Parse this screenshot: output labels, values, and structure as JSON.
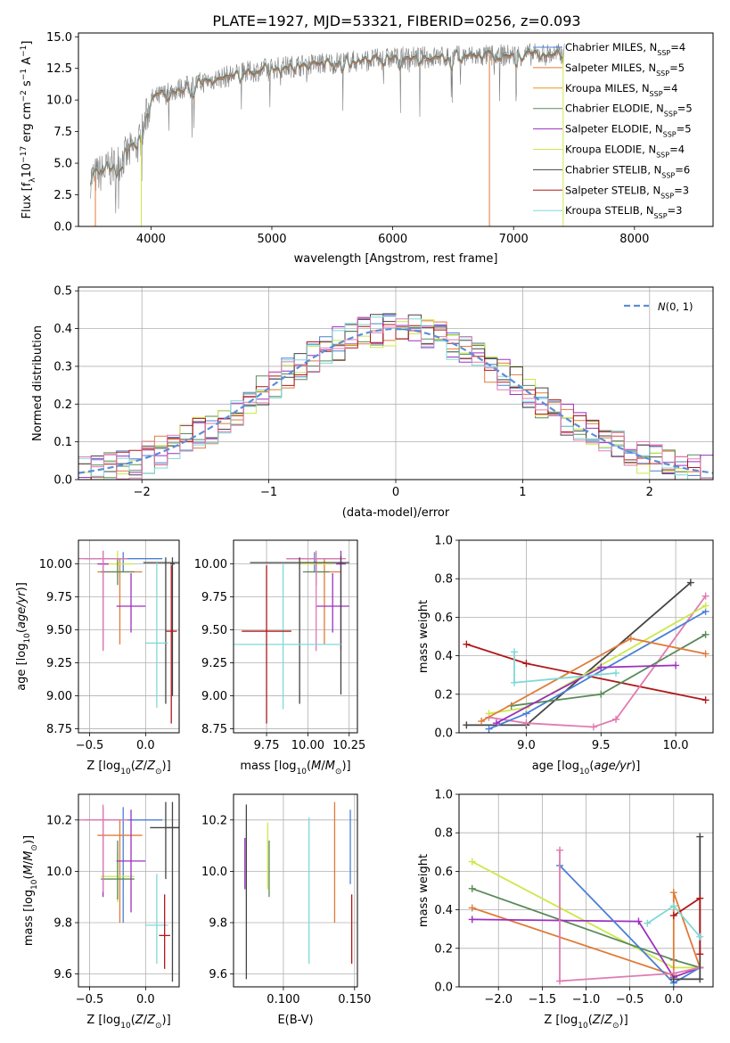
{
  "figure": {
    "title": "PLATE=1927, MJD=53321, FIBERID=0256, z=0.093"
  },
  "colors": {
    "grid": "#b0b0b0",
    "series": [
      "#4c72b0",
      "#dd8452",
      "#8172b2",
      "#937860",
      "#da8bc3",
      "#8c8c8c",
      "#ccb974",
      "#64b5cd"
    ]
  },
  "chart_data": [
    {
      "id": "spectrum",
      "type": "line",
      "xlabel": "wavelength [Angstrom, rest frame]",
      "ylabel": "Flux [f_λ10^-17 erg cm^-2 s^-1 A^-1]",
      "xlim": [
        3400,
        8650
      ],
      "ylim": [
        0,
        15.3
      ],
      "xticks": [
        4000,
        5000,
        6000,
        7000,
        8000
      ],
      "yticks": [
        0.0,
        2.5,
        5.0,
        7.5,
        10.0,
        12.5,
        15.0
      ],
      "ytick_labels": [
        "0.0",
        "2.5",
        "5.0",
        "7.5",
        "10.0",
        "12.5",
        "15.0"
      ],
      "grid": false,
      "legend_position": "top-right",
      "observed_color": "#7f7f7f",
      "continuum": {
        "x": [
          3500,
          3700,
          3900,
          4000,
          4200,
          4500,
          4800,
          5000,
          5300,
          5600,
          6000,
          6400,
          6800,
          7200,
          7400
        ],
        "y": [
          3.8,
          4.8,
          6.5,
          10.0,
          10.8,
          11.6,
          12.2,
          12.5,
          12.8,
          13.0,
          13.3,
          13.4,
          13.5,
          13.6,
          13.6
        ]
      },
      "series": [
        {
          "name": "Chabrier MILES",
          "nssp": "4",
          "color": "#4a7fd4"
        },
        {
          "name": "Salpeter MILES",
          "nssp": "5",
          "color": "#e07b39"
        },
        {
          "name": "Kroupa MILES",
          "nssp": "4",
          "color": "#e69520"
        },
        {
          "name": "Chabrier ELODIE",
          "nssp": "5",
          "color": "#5a8a5a"
        },
        {
          "name": "Salpeter ELODIE",
          "nssp": "5",
          "color": "#9b30c0"
        },
        {
          "name": "Kroupa ELODIE",
          "nssp": "4",
          "color": "#cce84a"
        },
        {
          "name": "Chabrier STELIB",
          "nssp": "6",
          "color": "#444444"
        },
        {
          "name": "Salpeter STELIB",
          "nssp": "3",
          "color": "#b01818"
        },
        {
          "name": "Kroupa STELIB",
          "nssp": "3",
          "color": "#7fd8d8"
        }
      ]
    },
    {
      "id": "residuals",
      "type": "line",
      "xlabel": "(data-model)/error",
      "ylabel": "Normed distribution",
      "xlim": [
        -2.5,
        2.5
      ],
      "ylim": [
        0,
        0.51
      ],
      "xticks": [
        -2,
        -1,
        0,
        1,
        2
      ],
      "xtick_labels": [
        "−2",
        "−1",
        "0",
        "1",
        "2"
      ],
      "yticks": [
        0.0,
        0.1,
        0.2,
        0.3,
        0.4,
        0.5
      ],
      "ytick_labels": [
        "0.0",
        "0.1",
        "0.2",
        "0.3",
        "0.4",
        "0.5"
      ],
      "grid": true,
      "legend_position": "top-right",
      "gaussian": {
        "name": "N(0, 1)",
        "mean": 0,
        "sigma": 1,
        "color": "#5b8fd6"
      },
      "hist_colors": [
        "#4a7fd4",
        "#e07b39",
        "#5a8a5a",
        "#9b30c0",
        "#cce84a",
        "#444444",
        "#b01818",
        "#7fd8d8",
        "#e07bb0"
      ]
    },
    {
      "id": "age_vs_Z",
      "type": "errorbar",
      "xlabel": "Z [log10(Z/Z⊙)]",
      "ylabel": "age [log10(age/yr)]",
      "xlim": [
        -0.6,
        0.3
      ],
      "ylim": [
        8.72,
        10.18
      ],
      "xticks": [
        -0.5,
        0.0
      ],
      "xtick_labels": [
        "−0.5",
        "0.0"
      ],
      "yticks": [
        8.75,
        9.0,
        9.25,
        9.5,
        9.75,
        10.0
      ],
      "ytick_labels": [
        "8.75",
        "9.00",
        "9.25",
        "9.50",
        "9.75",
        "10.00"
      ],
      "grid": true,
      "points": [
        {
          "x": -0.2,
          "y": 10.04,
          "xerr": 0.35,
          "yerr": [
            0.1,
            0.05
          ],
          "color": "#4a7fd4"
        },
        {
          "x": -0.23,
          "y": 9.94,
          "xerr": 0.2,
          "yerr": [
            0.55,
            0.1
          ],
          "color": "#e07b39"
        },
        {
          "x": -0.25,
          "y": 10.0,
          "xerr": 0.15,
          "yerr": [
            0.1,
            0.1
          ],
          "color": "#cce84a"
        },
        {
          "x": -0.25,
          "y": 9.94,
          "xerr": 0.15,
          "yerr": [
            0.1,
            0.1
          ],
          "color": "#5a8a5a"
        },
        {
          "x": -0.13,
          "y": 9.68,
          "xerr": 0.13,
          "yerr": [
            0.2,
            0.25
          ],
          "color": "#9b30c0"
        },
        {
          "x": -0.38,
          "y": 10.0,
          "xerr": 0.05,
          "yerr": [
            0.65,
            0.1
          ],
          "color": "#9b30c0"
        },
        {
          "x": -0.38,
          "y": 10.04,
          "xerr": 0.22,
          "yerr": [
            0.7,
            0.06
          ],
          "color": "#e07bb0"
        },
        {
          "x": 0.24,
          "y": 10.0,
          "xerr": 0.02,
          "yerr": [
            1.0,
            0.05
          ],
          "color": "#444444"
        },
        {
          "x": 0.18,
          "y": 10.01,
          "xerr": 0.2,
          "yerr": [
            1.07,
            0.04
          ],
          "color": "#444444"
        },
        {
          "x": 0.1,
          "y": 9.4,
          "xerr": 0.1,
          "yerr": [
            0.49,
            0.61
          ],
          "color": "#7fd8d8"
        },
        {
          "x": 0.23,
          "y": 9.49,
          "xerr": 0.05,
          "yerr": [
            0.7,
            0.5
          ],
          "color": "#b01818"
        }
      ]
    },
    {
      "id": "age_vs_mass",
      "type": "errorbar",
      "xlabel": "mass [log10(M/M⊙)]",
      "xlim": [
        9.55,
        10.3
      ],
      "ylim": [
        8.72,
        10.18
      ],
      "xticks": [
        9.75,
        10.0,
        10.25
      ],
      "xtick_labels": [
        "9.75",
        "10.00",
        "10.25"
      ],
      "yticks": [
        8.75,
        9.0,
        9.25,
        9.5,
        9.75,
        10.0
      ],
      "ytick_labels": [
        "8.75",
        "9.00",
        "9.25",
        "9.50",
        "9.75",
        "10.00"
      ],
      "grid": true,
      "points": [
        {
          "x": 10.04,
          "y": 10.04,
          "xerr": 0.17,
          "yerr": [
            0.1,
            0.05
          ],
          "color": "#4a7fd4"
        },
        {
          "x": 10.1,
          "y": 9.94,
          "xerr": 0.1,
          "yerr": [
            0.55,
            0.1
          ],
          "color": "#e07b39"
        },
        {
          "x": 10.05,
          "y": 10.0,
          "xerr": 0.1,
          "yerr": [
            0.1,
            0.1
          ],
          "color": "#cce84a"
        },
        {
          "x": 10.05,
          "y": 9.94,
          "xerr": 0.08,
          "yerr": [
            0.1,
            0.1
          ],
          "color": "#5a8a5a"
        },
        {
          "x": 10.15,
          "y": 9.68,
          "xerr": 0.1,
          "yerr": [
            0.2,
            0.25
          ],
          "color": "#9b30c0"
        },
        {
          "x": 10.2,
          "y": 10.0,
          "xerr": 0.03,
          "yerr": [
            0.65,
            0.1
          ],
          "color": "#9b30c0"
        },
        {
          "x": 10.05,
          "y": 10.04,
          "xerr": 0.18,
          "yerr": [
            0.7,
            0.06
          ],
          "color": "#e07bb0"
        },
        {
          "x": 10.2,
          "y": 10.01,
          "xerr": 0.02,
          "yerr": [
            1.0,
            0.05
          ],
          "color": "#444444"
        },
        {
          "x": 9.95,
          "y": 10.01,
          "xerr": 0.3,
          "yerr": [
            1.07,
            0.04
          ],
          "color": "#444444"
        },
        {
          "x": 9.85,
          "y": 9.39,
          "xerr": 0.35,
          "yerr": [
            0.49,
            0.61
          ],
          "color": "#7fd8d8"
        },
        {
          "x": 9.75,
          "y": 9.49,
          "xerr": 0.15,
          "yerr": [
            0.7,
            0.5
          ],
          "color": "#b01818"
        }
      ]
    },
    {
      "id": "weight_vs_age",
      "type": "line",
      "xlabel": "age [log10(age/yr)]",
      "ylabel": "mass weight",
      "xlim": [
        8.55,
        10.25
      ],
      "ylim": [
        0.0,
        1.0
      ],
      "xticks": [
        9.0,
        9.5,
        10.0
      ],
      "xtick_labels": [
        "9.0",
        "9.5",
        "10.0"
      ],
      "yticks": [
        0.0,
        0.2,
        0.4,
        0.6,
        0.8,
        1.0
      ],
      "ytick_labels": [
        "0.0",
        "0.2",
        "0.4",
        "0.6",
        "0.8",
        "1.0"
      ],
      "grid": true,
      "series": [
        {
          "color": "#b01818",
          "x": [
            8.6,
            9.0,
            10.2
          ],
          "y": [
            0.46,
            0.36,
            0.17
          ]
        },
        {
          "color": "#444444",
          "x": [
            8.6,
            9.0,
            10.1
          ],
          "y": [
            0.04,
            0.04,
            0.78
          ]
        },
        {
          "color": "#e07bb0",
          "x": [
            8.75,
            9.0,
            9.45,
            9.6,
            10.2
          ],
          "y": [
            0.08,
            0.05,
            0.03,
            0.07,
            0.71
          ]
        },
        {
          "color": "#4a7fd4",
          "x": [
            8.75,
            9.0,
            10.2
          ],
          "y": [
            0.02,
            0.1,
            0.63
          ]
        },
        {
          "color": "#cce84a",
          "x": [
            8.75,
            9.0,
            10.2
          ],
          "y": [
            0.1,
            0.13,
            0.66
          ]
        },
        {
          "color": "#5a8a5a",
          "x": [
            8.9,
            9.5,
            10.2
          ],
          "y": [
            0.14,
            0.2,
            0.51
          ]
        },
        {
          "color": "#e07b39",
          "x": [
            8.7,
            9.7,
            10.2
          ],
          "y": [
            0.06,
            0.49,
            0.41
          ]
        },
        {
          "color": "#9b30c0",
          "x": [
            8.8,
            9.5,
            10.0
          ],
          "y": [
            0.05,
            0.34,
            0.35
          ]
        },
        {
          "color": "#7fd8d8",
          "x": [
            8.92,
            8.92,
            9.6
          ],
          "y": [
            0.42,
            0.26,
            0.31
          ]
        }
      ]
    },
    {
      "id": "mass_vs_Z",
      "type": "errorbar",
      "xlabel": "Z [log10(Z/Z⊙)]",
      "ylabel": "mass [log10(M/M⊙)]",
      "xlim": [
        -0.6,
        0.3
      ],
      "ylim": [
        9.55,
        10.3
      ],
      "xticks": [
        -0.5,
        0.0
      ],
      "xtick_labels": [
        "−0.5",
        "0.0"
      ],
      "yticks": [
        9.6,
        9.8,
        10.0,
        10.2
      ],
      "ytick_labels": [
        "9.6",
        "9.8",
        "10.0",
        "10.2"
      ],
      "grid": true,
      "points": [
        {
          "x": -0.2,
          "y": 10.2,
          "xerr": 0.35,
          "yerr": [
            0.4,
            0.05
          ],
          "color": "#4a7fd4"
        },
        {
          "x": -0.23,
          "y": 10.14,
          "xerr": 0.2,
          "yerr": [
            0.34,
            0.06
          ],
          "color": "#e07b39"
        },
        {
          "x": -0.25,
          "y": 9.98,
          "xerr": 0.15,
          "yerr": [
            0.1,
            0.1
          ],
          "color": "#cce84a"
        },
        {
          "x": -0.25,
          "y": 9.97,
          "xerr": 0.15,
          "yerr": [
            0.08,
            0.15
          ],
          "color": "#5a8a5a"
        },
        {
          "x": -0.13,
          "y": 10.04,
          "xerr": 0.13,
          "yerr": [
            0.2,
            0.2
          ],
          "color": "#9b30c0"
        },
        {
          "x": -0.38,
          "y": 10.2,
          "xerr": 0.05,
          "yerr": [
            0.3,
            0.05
          ],
          "color": "#9b30c0"
        },
        {
          "x": -0.38,
          "y": 10.2,
          "xerr": 0.22,
          "yerr": [
            0.28,
            0.06
          ],
          "color": "#e07bb0"
        },
        {
          "x": 0.24,
          "y": 10.17,
          "xerr": 0.06,
          "yerr": [
            0.6,
            0.1
          ],
          "color": "#444444"
        },
        {
          "x": 0.18,
          "y": 10.17,
          "xerr": 0.14,
          "yerr": [
            0.2,
            0.1
          ],
          "color": "#444444"
        },
        {
          "x": 0.1,
          "y": 9.79,
          "xerr": 0.1,
          "yerr": [
            0.15,
            0.2
          ],
          "color": "#7fd8d8"
        },
        {
          "x": 0.17,
          "y": 9.75,
          "xerr": 0.05,
          "yerr": [
            0.13,
            0.16
          ],
          "color": "#b01818"
        }
      ]
    },
    {
      "id": "mass_vs_ebv",
      "type": "errorbar",
      "xlabel": "E(B-V)",
      "xlim": [
        0.065,
        0.152
      ],
      "ylim": [
        9.55,
        10.3
      ],
      "xticks": [
        0.1,
        0.15
      ],
      "xtick_labels": [
        "0.100",
        "0.150"
      ],
      "yticks": [
        9.6,
        9.8,
        10.0,
        10.2
      ],
      "ytick_labels": [
        "9.6",
        "9.8",
        "10.0",
        "10.2"
      ],
      "grid": true,
      "points": [
        {
          "x": 0.073,
          "y": 10.03,
          "xerr": 0,
          "yerr": [
            0.1,
            0.1
          ],
          "color": "#9b30c0"
        },
        {
          "x": 0.074,
          "y": 9.9,
          "xerr": 0,
          "yerr": [
            0.32,
            0.36
          ],
          "color": "#444444"
        },
        {
          "x": 0.089,
          "y": 10.05,
          "xerr": 0,
          "yerr": [
            0.12,
            0.14
          ],
          "color": "#cce84a"
        },
        {
          "x": 0.09,
          "y": 10.0,
          "xerr": 0,
          "yerr": [
            0.1,
            0.12
          ],
          "color": "#5a8a5a"
        },
        {
          "x": 0.118,
          "y": 9.92,
          "xerr": 0,
          "yerr": [
            0.28,
            0.29
          ],
          "color": "#7fd8d8"
        },
        {
          "x": 0.136,
          "y": 10.12,
          "xerr": 0,
          "yerr": [
            0.32,
            0.15
          ],
          "color": "#e07b39"
        },
        {
          "x": 0.147,
          "y": 10.05,
          "xerr": 0,
          "yerr": [
            0.1,
            0.19
          ],
          "color": "#4a7fd4"
        },
        {
          "x": 0.148,
          "y": 9.77,
          "xerr": 0,
          "yerr": [
            0.13,
            0.14
          ],
          "color": "#b01818"
        }
      ]
    },
    {
      "id": "weight_vs_Z",
      "type": "line",
      "xlabel": "Z [log10(Z/Z⊙)]",
      "ylabel": "mass weight",
      "xlim": [
        -2.45,
        0.45
      ],
      "ylim": [
        0.0,
        1.0
      ],
      "xticks": [
        -2.0,
        -1.5,
        -1.0,
        -0.5,
        0.0
      ],
      "xtick_labels": [
        "−2.0",
        "−1.5",
        "−1.0",
        "−0.5",
        "0.0"
      ],
      "yticks": [
        0.0,
        0.2,
        0.4,
        0.6,
        0.8,
        1.0
      ],
      "ytick_labels": [
        "0.0",
        "0.2",
        "0.4",
        "0.6",
        "0.8",
        "1.0"
      ],
      "grid": true,
      "series": [
        {
          "color": "#cce84a",
          "x": [
            -2.3,
            0.0,
            0.3
          ],
          "y": [
            0.65,
            0.1,
            0.1
          ]
        },
        {
          "color": "#5a8a5a",
          "x": [
            -2.3,
            0.0,
            0.3
          ],
          "y": [
            0.51,
            0.14,
            0.1
          ]
        },
        {
          "color": "#e07b39",
          "x": [
            -2.3,
            0.0,
            0.0,
            0.3
          ],
          "y": [
            0.41,
            0.06,
            0.49,
            0.1
          ]
        },
        {
          "color": "#9b30c0",
          "x": [
            -2.3,
            -0.4,
            0.0,
            0.3
          ],
          "y": [
            0.35,
            0.34,
            0.05,
            0.1
          ]
        },
        {
          "color": "#4a7fd4",
          "x": [
            -1.3,
            0.0,
            0.3
          ],
          "y": [
            0.63,
            0.02,
            0.1
          ]
        },
        {
          "color": "#e07bb0",
          "x": [
            -1.3,
            -1.3,
            0.0,
            0.3
          ],
          "y": [
            0.71,
            0.03,
            0.07,
            0.1
          ]
        },
        {
          "color": "#444444",
          "x": [
            0.3,
            0.3,
            0.0,
            0.0
          ],
          "y": [
            0.78,
            0.04,
            0.04,
            0.04
          ]
        },
        {
          "color": "#b01818",
          "x": [
            0.0,
            0.3,
            0.3
          ],
          "y": [
            0.37,
            0.46,
            0.17
          ]
        },
        {
          "color": "#7fd8d8",
          "x": [
            -0.3,
            0.0,
            0.3
          ],
          "y": [
            0.33,
            0.42,
            0.26
          ]
        }
      ]
    }
  ]
}
